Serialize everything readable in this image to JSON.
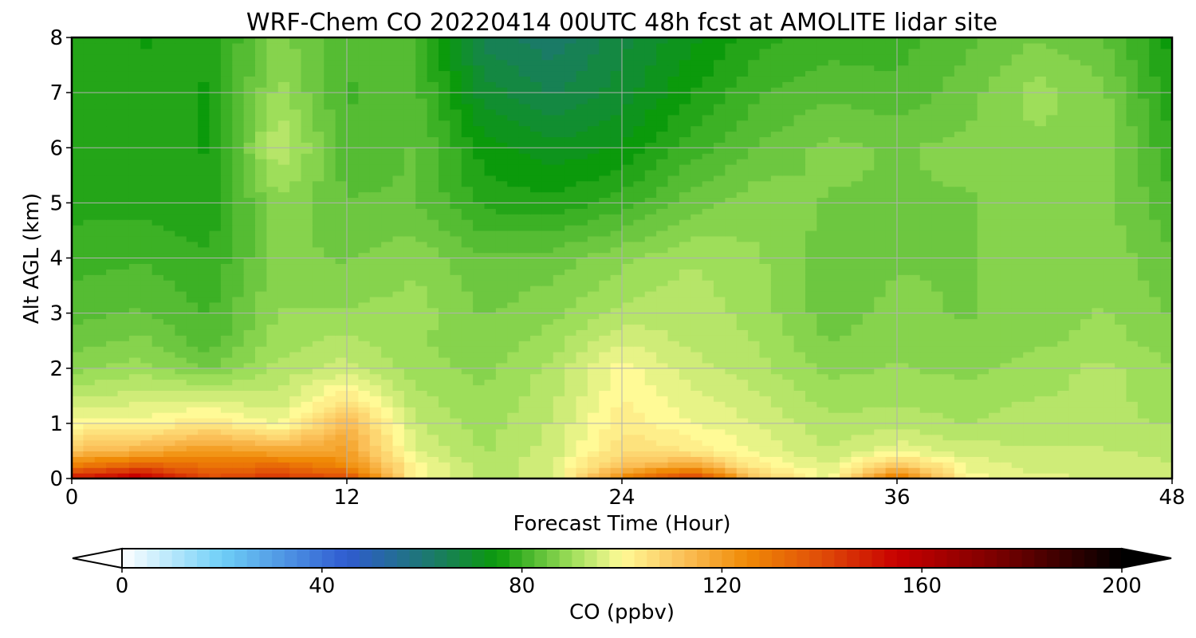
{
  "chart_data": {
    "type": "heatmap",
    "title": "WRF-Chem CO  20220414 00UTC 48h fcst at AMOLITE lidar site",
    "xlabel": "Forecast Time (Hour)",
    "ylabel": "Alt AGL (km)",
    "xlim": [
      0,
      48
    ],
    "ylim": [
      0,
      8
    ],
    "x_ticks": [
      0,
      12,
      24,
      36,
      48
    ],
    "y_ticks": [
      0,
      1,
      2,
      3,
      4,
      5,
      6,
      7,
      8
    ],
    "grid": true,
    "x": [
      0,
      3,
      6,
      9,
      12,
      15,
      18,
      21,
      24,
      27,
      30,
      33,
      36,
      39,
      42,
      45,
      48
    ],
    "y": [
      0,
      0.25,
      0.5,
      1,
      1.5,
      2,
      2.5,
      3,
      4,
      5,
      6,
      7,
      8
    ],
    "z": [
      [
        150,
        160,
        140,
        145,
        140,
        100,
        92,
        96,
        125,
        145,
        110,
        98,
        130,
        100,
        97,
        96,
        95
      ],
      [
        128,
        135,
        130,
        132,
        125,
        100,
        92,
        96,
        112,
        118,
        102,
        96,
        112,
        98,
        95,
        95,
        94
      ],
      [
        112,
        116,
        122,
        118,
        120,
        96,
        91,
        95,
        106,
        104,
        98,
        94,
        98,
        95,
        94,
        94,
        93
      ],
      [
        100,
        100,
        104,
        98,
        114,
        94,
        90,
        94,
        103,
        99,
        96,
        92,
        93,
        91,
        93,
        92,
        91
      ],
      [
        93,
        95,
        95,
        94,
        103,
        92,
        89,
        93,
        101,
        97,
        94,
        90,
        90,
        90,
        91,
        92,
        90
      ],
      [
        88,
        90,
        86,
        92,
        95,
        90,
        88,
        92,
        100,
        95,
        92,
        88,
        89,
        88,
        90,
        92,
        89
      ],
      [
        85,
        87,
        82,
        90,
        92,
        89,
        87,
        90,
        96,
        93,
        91,
        86,
        88,
        87,
        88,
        90,
        87
      ],
      [
        83,
        84,
        81,
        89,
        89,
        90,
        86,
        88,
        92,
        93,
        90,
        85,
        87,
        86,
        87,
        89,
        86
      ],
      [
        80,
        81,
        79,
        87,
        86,
        88,
        84,
        85,
        88,
        91,
        89,
        85,
        86,
        86,
        87,
        88,
        84
      ],
      [
        78,
        78,
        77,
        88,
        84,
        84,
        78,
        77,
        80,
        85,
        88,
        86,
        86,
        86,
        87,
        87,
        82
      ],
      [
        77,
        78,
        76,
        94,
        82,
        84,
        75,
        72,
        74,
        80,
        84,
        87,
        86,
        87,
        88,
        88,
        79
      ],
      [
        78,
        77,
        76,
        90,
        81,
        82,
        70,
        66,
        70,
        76,
        81,
        83,
        82,
        85,
        90,
        87,
        77
      ],
      [
        79,
        76,
        77,
        87,
        82,
        82,
        65,
        62,
        68,
        73,
        78,
        80,
        80,
        83,
        86,
        84,
        75
      ]
    ],
    "colorbar": {
      "label": "CO  (ppbv)",
      "min": 0,
      "max": 200,
      "ticks": [
        0,
        40,
        80,
        120,
        160,
        200
      ],
      "extend": "both",
      "colormap_stops": [
        {
          "v": 0,
          "color": "#ffffff"
        },
        {
          "v": 20,
          "color": "#6fcff7"
        },
        {
          "v": 45,
          "color": "#2f5bd0"
        },
        {
          "v": 62,
          "color": "#1b7a6a"
        },
        {
          "v": 75,
          "color": "#0b9a0b"
        },
        {
          "v": 90,
          "color": "#9ede5a"
        },
        {
          "v": 100,
          "color": "#fffa96"
        },
        {
          "v": 112,
          "color": "#fbc15a"
        },
        {
          "v": 125,
          "color": "#f08a06"
        },
        {
          "v": 140,
          "color": "#e04c08"
        },
        {
          "v": 155,
          "color": "#c80000"
        },
        {
          "v": 175,
          "color": "#7a0000"
        },
        {
          "v": 200,
          "color": "#000000"
        }
      ]
    }
  }
}
